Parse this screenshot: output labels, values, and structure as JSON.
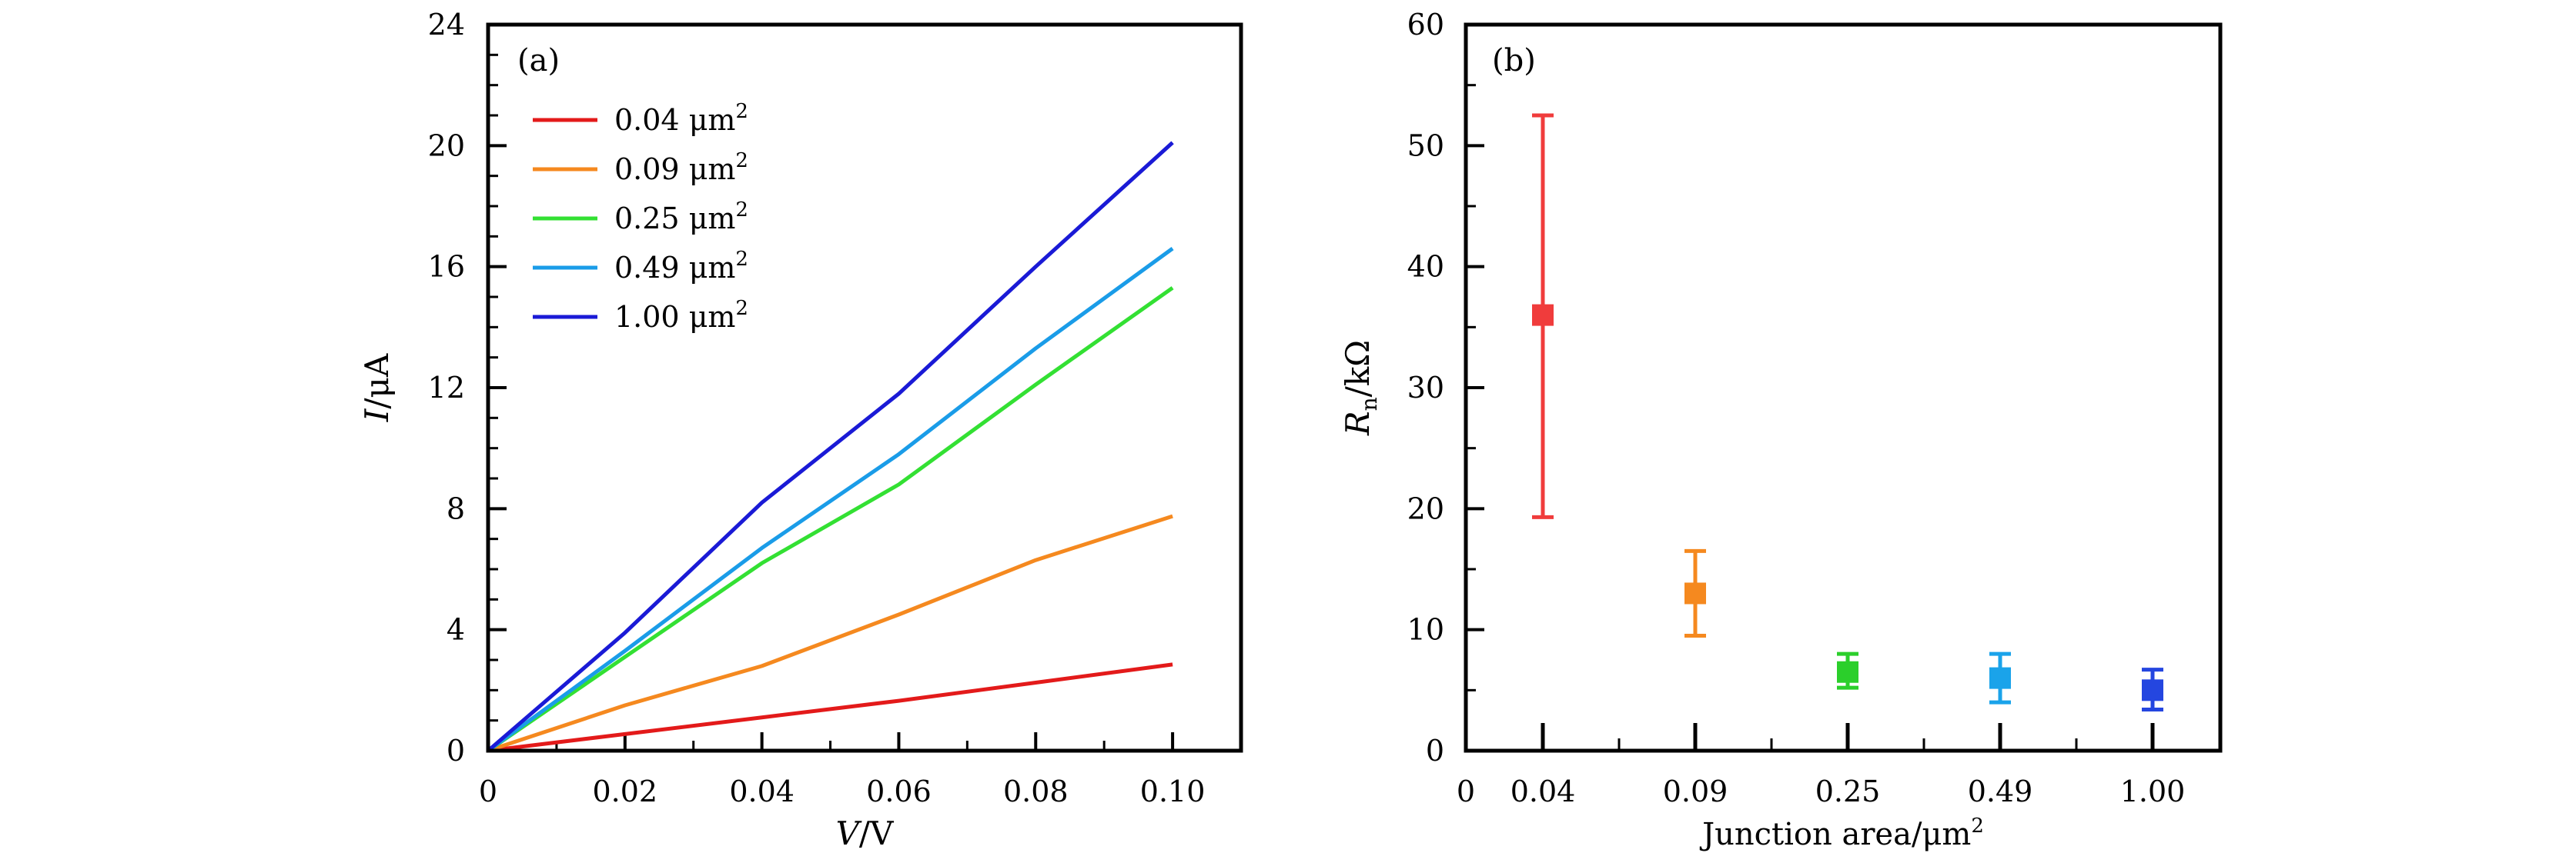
{
  "chart_data": [
    {
      "type": "line",
      "panel_label": "(a)",
      "xlabel_var": "V",
      "xlabel_unit": "/V",
      "ylabel_var": "I",
      "ylabel_unit": "/μA",
      "xlim": [
        0,
        0.11
      ],
      "ylim": [
        0,
        24
      ],
      "xticks": [
        0,
        0.02,
        0.04,
        0.06,
        0.08,
        0.1
      ],
      "xtick_labels": [
        "0",
        "0.02",
        "0.04",
        "0.06",
        "0.08",
        "0.10"
      ],
      "yticks": [
        0,
        4,
        8,
        12,
        16,
        20,
        24
      ],
      "ytick_labels": [
        "0",
        "4",
        "8",
        "12",
        "16",
        "20",
        "24"
      ],
      "legend_position": "top-left",
      "series": [
        {
          "name": "0.04 μm",
          "superscript": "2",
          "color": "#e31a1a",
          "x": [
            0,
            0.02,
            0.04,
            0.06,
            0.08,
            0.1
          ],
          "y": [
            0,
            0.55,
            1.1,
            1.65,
            2.25,
            2.85
          ]
        },
        {
          "name": "0.09 μm",
          "superscript": "2",
          "color": "#f5891f",
          "x": [
            0,
            0.02,
            0.04,
            0.06,
            0.08,
            0.1
          ],
          "y": [
            0,
            1.5,
            2.8,
            4.5,
            6.3,
            7.75
          ]
        },
        {
          "name": "0.25 μm",
          "superscript": "2",
          "color": "#33e033",
          "x": [
            0,
            0.02,
            0.04,
            0.06,
            0.08,
            0.1
          ],
          "y": [
            0,
            3.1,
            6.2,
            8.8,
            12.1,
            15.3
          ]
        },
        {
          "name": "0.49 μm",
          "superscript": "2",
          "color": "#1a9ce8",
          "x": [
            0,
            0.02,
            0.04,
            0.06,
            0.08,
            0.1
          ],
          "y": [
            0,
            3.3,
            6.7,
            9.8,
            13.3,
            16.6
          ]
        },
        {
          "name": "1.00 μm",
          "superscript": "2",
          "color": "#1a1ad6",
          "x": [
            0,
            0.02,
            0.04,
            0.06,
            0.08,
            0.1
          ],
          "y": [
            0,
            3.9,
            8.2,
            11.8,
            16.0,
            20.1
          ]
        }
      ]
    },
    {
      "type": "scatter",
      "panel_label": "(b)",
      "xlabel": "Junction area/μm",
      "xlabel_superscript": "2",
      "ylabel_var": "R",
      "ylabel_sub": "n",
      "ylabel_unit": "/kΩ",
      "ylim": [
        0,
        60
      ],
      "yticks": [
        0,
        10,
        20,
        30,
        40,
        50,
        60
      ],
      "ytick_labels": [
        "0",
        "10",
        "20",
        "30",
        "40",
        "50",
        "60"
      ],
      "x_origin_label": "0",
      "categories": [
        "0.04",
        "0.09",
        "0.25",
        "0.49",
        "1.00"
      ],
      "points": [
        {
          "category": "0.04",
          "value": 36.0,
          "err_low": 19.3,
          "err_high": 52.5,
          "color": "#f03c3c"
        },
        {
          "category": "0.09",
          "value": 13.0,
          "err_low": 9.5,
          "err_high": 16.5,
          "color": "#f5891f"
        },
        {
          "category": "0.25",
          "value": 6.5,
          "err_low": 5.2,
          "err_high": 8.0,
          "color": "#2bcf2b"
        },
        {
          "category": "0.49",
          "value": 6.0,
          "err_low": 4.0,
          "err_high": 8.0,
          "color": "#1aa3ea"
        },
        {
          "category": "1.00",
          "value": 5.0,
          "err_low": 3.4,
          "err_high": 6.7,
          "color": "#2446e0"
        }
      ]
    }
  ]
}
